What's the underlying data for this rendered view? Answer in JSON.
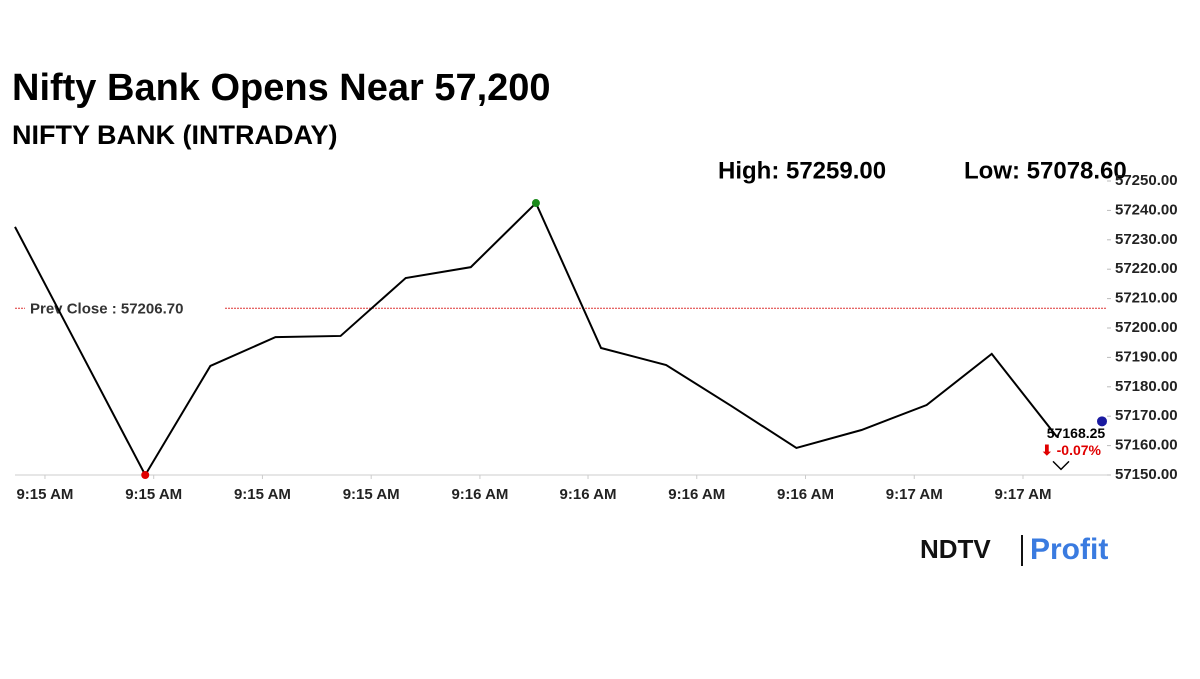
{
  "chart_data": {
    "type": "line",
    "title": "Nifty Bank Opens Near 57,200",
    "subtitle": "NIFTY BANK (INTRADAY)",
    "high_label": "High: 57259.00",
    "low_label": "Low: 57078.60",
    "prev_close_label": "Prev Close : 57206.70",
    "prev_close": 57206.7,
    "last_price": 57168.25,
    "last_price_label": "57168.25",
    "change_label": "⬇ -0.07%",
    "brand": "NDTV",
    "brand_suffix": "Profit",
    "x": [
      0,
      1,
      2,
      3,
      4,
      5,
      6,
      7,
      8,
      9,
      10,
      11,
      12,
      13,
      14,
      15,
      16
    ],
    "series": [
      {
        "name": "NIFTY BANK",
        "color": "#000000",
        "values": [
          57234.4,
          57192.2,
          57150,
          57187.1,
          57196.9,
          57197.3,
          57217,
          57220.7,
          57242.5,
          57193.2,
          57187.4,
          57173.5,
          57159.2,
          57165.3,
          57173.8,
          57191.2,
          57163
        ]
      }
    ],
    "xlim": [
      0,
      16.77
    ],
    "xticks": [
      {
        "value": 0.46,
        "label": "9:15 AM"
      },
      {
        "value": 2.13,
        "label": "9:15 AM"
      },
      {
        "value": 3.8,
        "label": "9:15 AM"
      },
      {
        "value": 5.47,
        "label": "9:15 AM"
      },
      {
        "value": 7.14,
        "label": "9:16 AM"
      },
      {
        "value": 8.8,
        "label": "9:16 AM"
      },
      {
        "value": 10.47,
        "label": "9:16 AM"
      },
      {
        "value": 12.14,
        "label": "9:16 AM"
      },
      {
        "value": 13.81,
        "label": "9:17 AM"
      },
      {
        "value": 15.48,
        "label": "9:17 AM"
      }
    ],
    "ylim": [
      57150,
      57250
    ],
    "yticks": [
      {
        "value": 57150,
        "label": "57150.00"
      },
      {
        "value": 57160,
        "label": "57160.00"
      },
      {
        "value": 57170,
        "label": "57170.00"
      },
      {
        "value": 57180,
        "label": "57180.00"
      },
      {
        "value": 57190,
        "label": "57190.00"
      },
      {
        "value": 57200,
        "label": "57200.00"
      },
      {
        "value": 57210,
        "label": "57210.00"
      },
      {
        "value": 57220,
        "label": "57220.00"
      },
      {
        "value": 57230,
        "label": "57230.00"
      },
      {
        "value": 57240,
        "label": "57240.00"
      },
      {
        "value": 57250,
        "label": "57250.00"
      }
    ]
  }
}
